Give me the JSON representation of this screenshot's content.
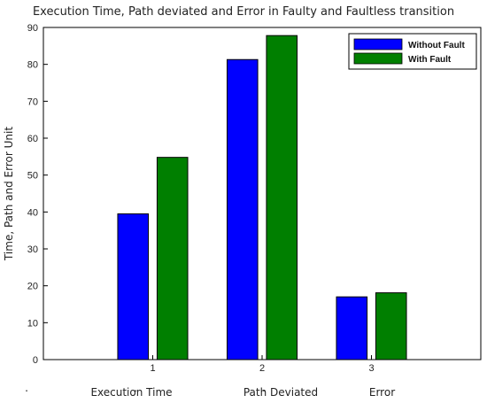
{
  "chart_data": {
    "type": "bar",
    "title": "Execution Time, Path deviated and Error in Faulty and Faultless transition",
    "ylabel": "Time, Path and Error Unit",
    "xlabel": "",
    "x_ticks": [
      "1",
      "2",
      "3"
    ],
    "xlim": [
      0,
      4
    ],
    "ylim": [
      0,
      90
    ],
    "y_ticks": [
      0,
      10,
      20,
      30,
      40,
      50,
      60,
      70,
      80,
      90
    ],
    "categories": [
      "Execution Time",
      "Path Deviated",
      "Error"
    ],
    "under_axis_marks": [
      ".",
      ".",
      "."
    ],
    "series": [
      {
        "name": "Without Fault",
        "color": "#0000ff",
        "values": [
          39.5,
          81.3,
          17.0
        ]
      },
      {
        "name": "With Fault",
        "color": "#007f00",
        "values": [
          54.8,
          87.8,
          18.1
        ]
      }
    ],
    "legend": "top-right",
    "grid": false
  }
}
